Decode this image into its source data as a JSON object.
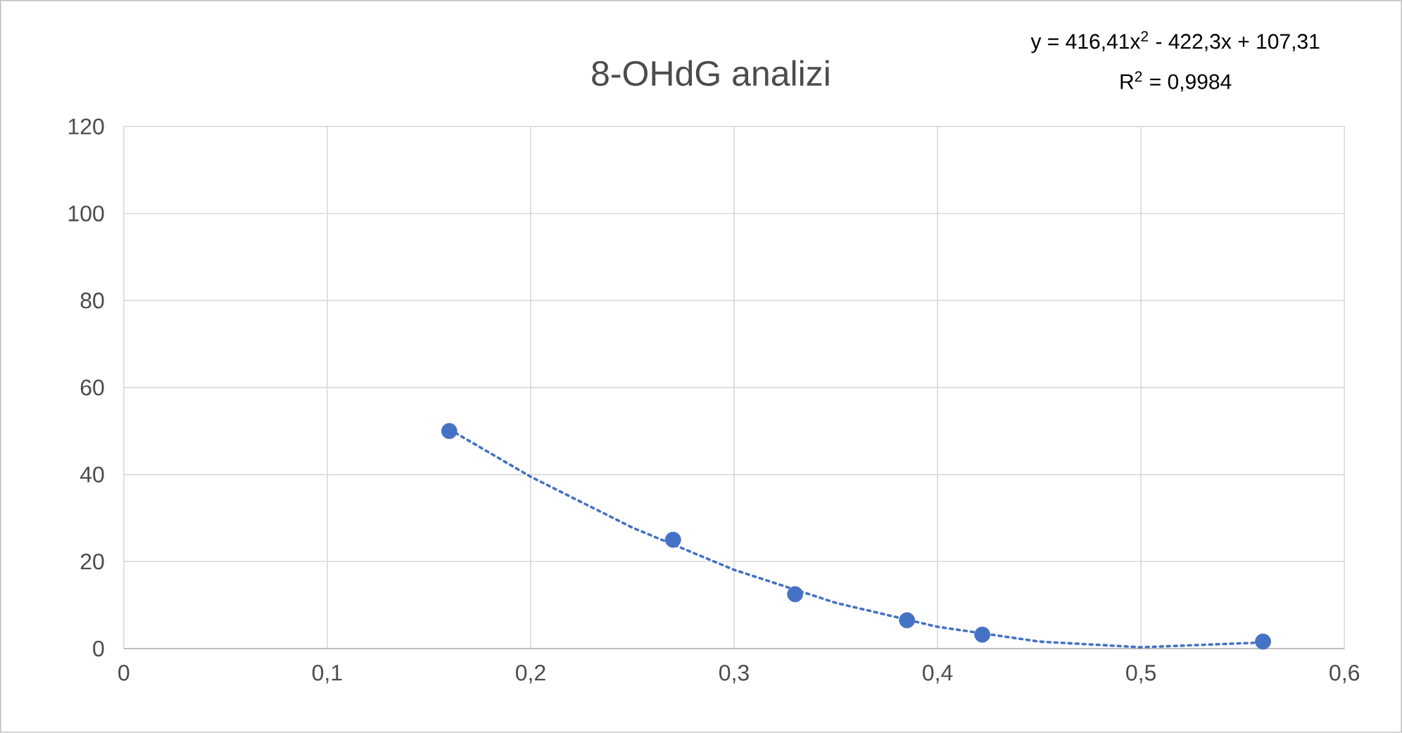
{
  "chart_data": {
    "type": "scatter",
    "title": "8-OHdG analizi",
    "annotations": [
      "y = 416,41x$^{2}$ - 422,3x + 107,31",
      "R$^{2}$ = 0,9984"
    ],
    "xlim": [
      0,
      0.6
    ],
    "ylim": [
      0,
      120
    ],
    "xticks": [
      0,
      {
        "value": 0.1,
        "label": "0,1"
      },
      {
        "value": 0.2,
        "label": "0,2"
      },
      {
        "value": 0.3,
        "label": "0,3"
      },
      {
        "value": 0.4,
        "label": "0,4"
      },
      {
        "value": 0.5,
        "label": "0,5"
      },
      {
        "value": 0.6,
        "label": "0,6"
      }
    ],
    "yticks": [
      0,
      20,
      40,
      60,
      80,
      100,
      120
    ],
    "grid": true,
    "series": [
      {
        "color": "#4472c4",
        "marker": "circle",
        "x": [
          0.16,
          0.27,
          0.33,
          0.385,
          0.422,
          0.56
        ],
        "values": [
          50,
          25,
          12.5,
          6.5,
          3.2,
          1.6
        ]
      },
      {
        "type": "line",
        "color": "#4472c4",
        "marker": "none",
        "line_style": "dotted",
        "x": [
          0.16,
          0.2,
          0.25,
          0.3,
          0.35,
          0.4,
          0.45,
          0.5,
          0.56
        ],
        "values": [
          50.4,
          39.5,
          27.8,
          18.1,
          10.5,
          5.0,
          1.6,
          0.3,
          1.4
        ]
      }
    ]
  }
}
